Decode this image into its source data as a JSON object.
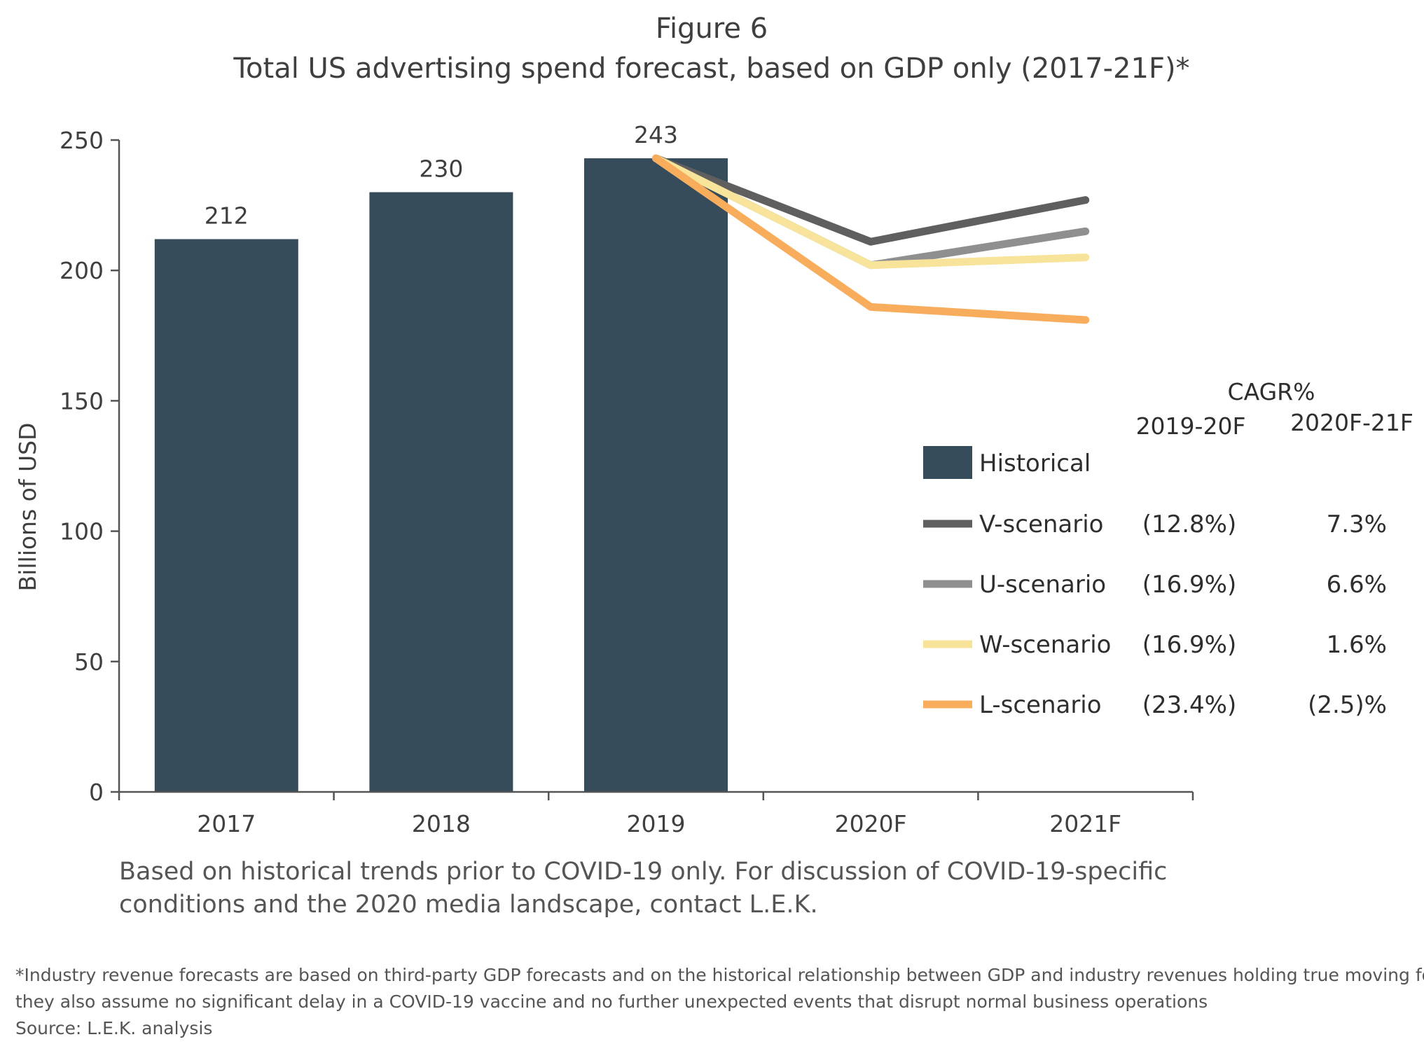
{
  "chart_data": {
    "type": "bar",
    "title": "Figure 6",
    "subtitle": "Total US advertising spend forecast, based on GDP only (2017-21F)*",
    "ylabel": "Billions of USD",
    "xlabel": "",
    "ylim": [
      0,
      250
    ],
    "yticks": [
      0,
      50,
      100,
      150,
      200,
      250
    ],
    "categories": [
      "2017",
      "2018",
      "2019",
      "2020F",
      "2021F"
    ],
    "bars": {
      "name": "Historical",
      "categories": [
        "2017",
        "2018",
        "2019"
      ],
      "values": [
        212,
        230,
        243
      ],
      "labels": [
        "212",
        "230",
        "243"
      ],
      "color": "#364c5a"
    },
    "series": [
      {
        "name": "V-scenario",
        "x": [
          "2019",
          "2020F",
          "2021F"
        ],
        "values": [
          243,
          211,
          227
        ],
        "color": "#5f5f5f",
        "cagr_2019_20F": "(12.8%)",
        "cagr_2020F_21F": "7.3%"
      },
      {
        "name": "U-scenario",
        "x": [
          "2019",
          "2020F",
          "2021F"
        ],
        "values": [
          243,
          202,
          215
        ],
        "color": "#8f8f8f",
        "cagr_2019_20F": "(16.9%)",
        "cagr_2020F_21F": "6.6%"
      },
      {
        "name": "W-scenario",
        "x": [
          "2019",
          "2020F",
          "2021F"
        ],
        "values": [
          243,
          202,
          205
        ],
        "color": "#f7e39a",
        "cagr_2019_20F": "(16.9%)",
        "cagr_2020F_21F": "1.6%"
      },
      {
        "name": "L-scenario",
        "x": [
          "2019",
          "2020F",
          "2021F"
        ],
        "values": [
          243,
          186,
          181
        ],
        "color": "#f8ad5c",
        "cagr_2019_20F": "(23.4%)",
        "cagr_2020F_21F": "(2.5)%"
      }
    ],
    "legend": {
      "placement": "right",
      "cagr_header": "CAGR%",
      "col1_header": "2019-20F",
      "col2_header": "2020F-21F"
    },
    "grid": false
  },
  "notes": {
    "chart_note_line1": "Based on historical trends prior to COVID-19 only. For discussion of COVID-19-specific",
    "chart_note_line2": "conditions and the 2020 media landscape, contact L.E.K.",
    "footnote_line1": "*Industry revenue forecasts are based on third-party GDP forecasts and on the historical relationship between GDP and industry revenues holding true moving forward;",
    "footnote_line2": "they also assume no significant delay in a COVID-19 vaccine and no further unexpected events that disrupt normal business operations",
    "source": "Source: L.E.K. analysis"
  }
}
